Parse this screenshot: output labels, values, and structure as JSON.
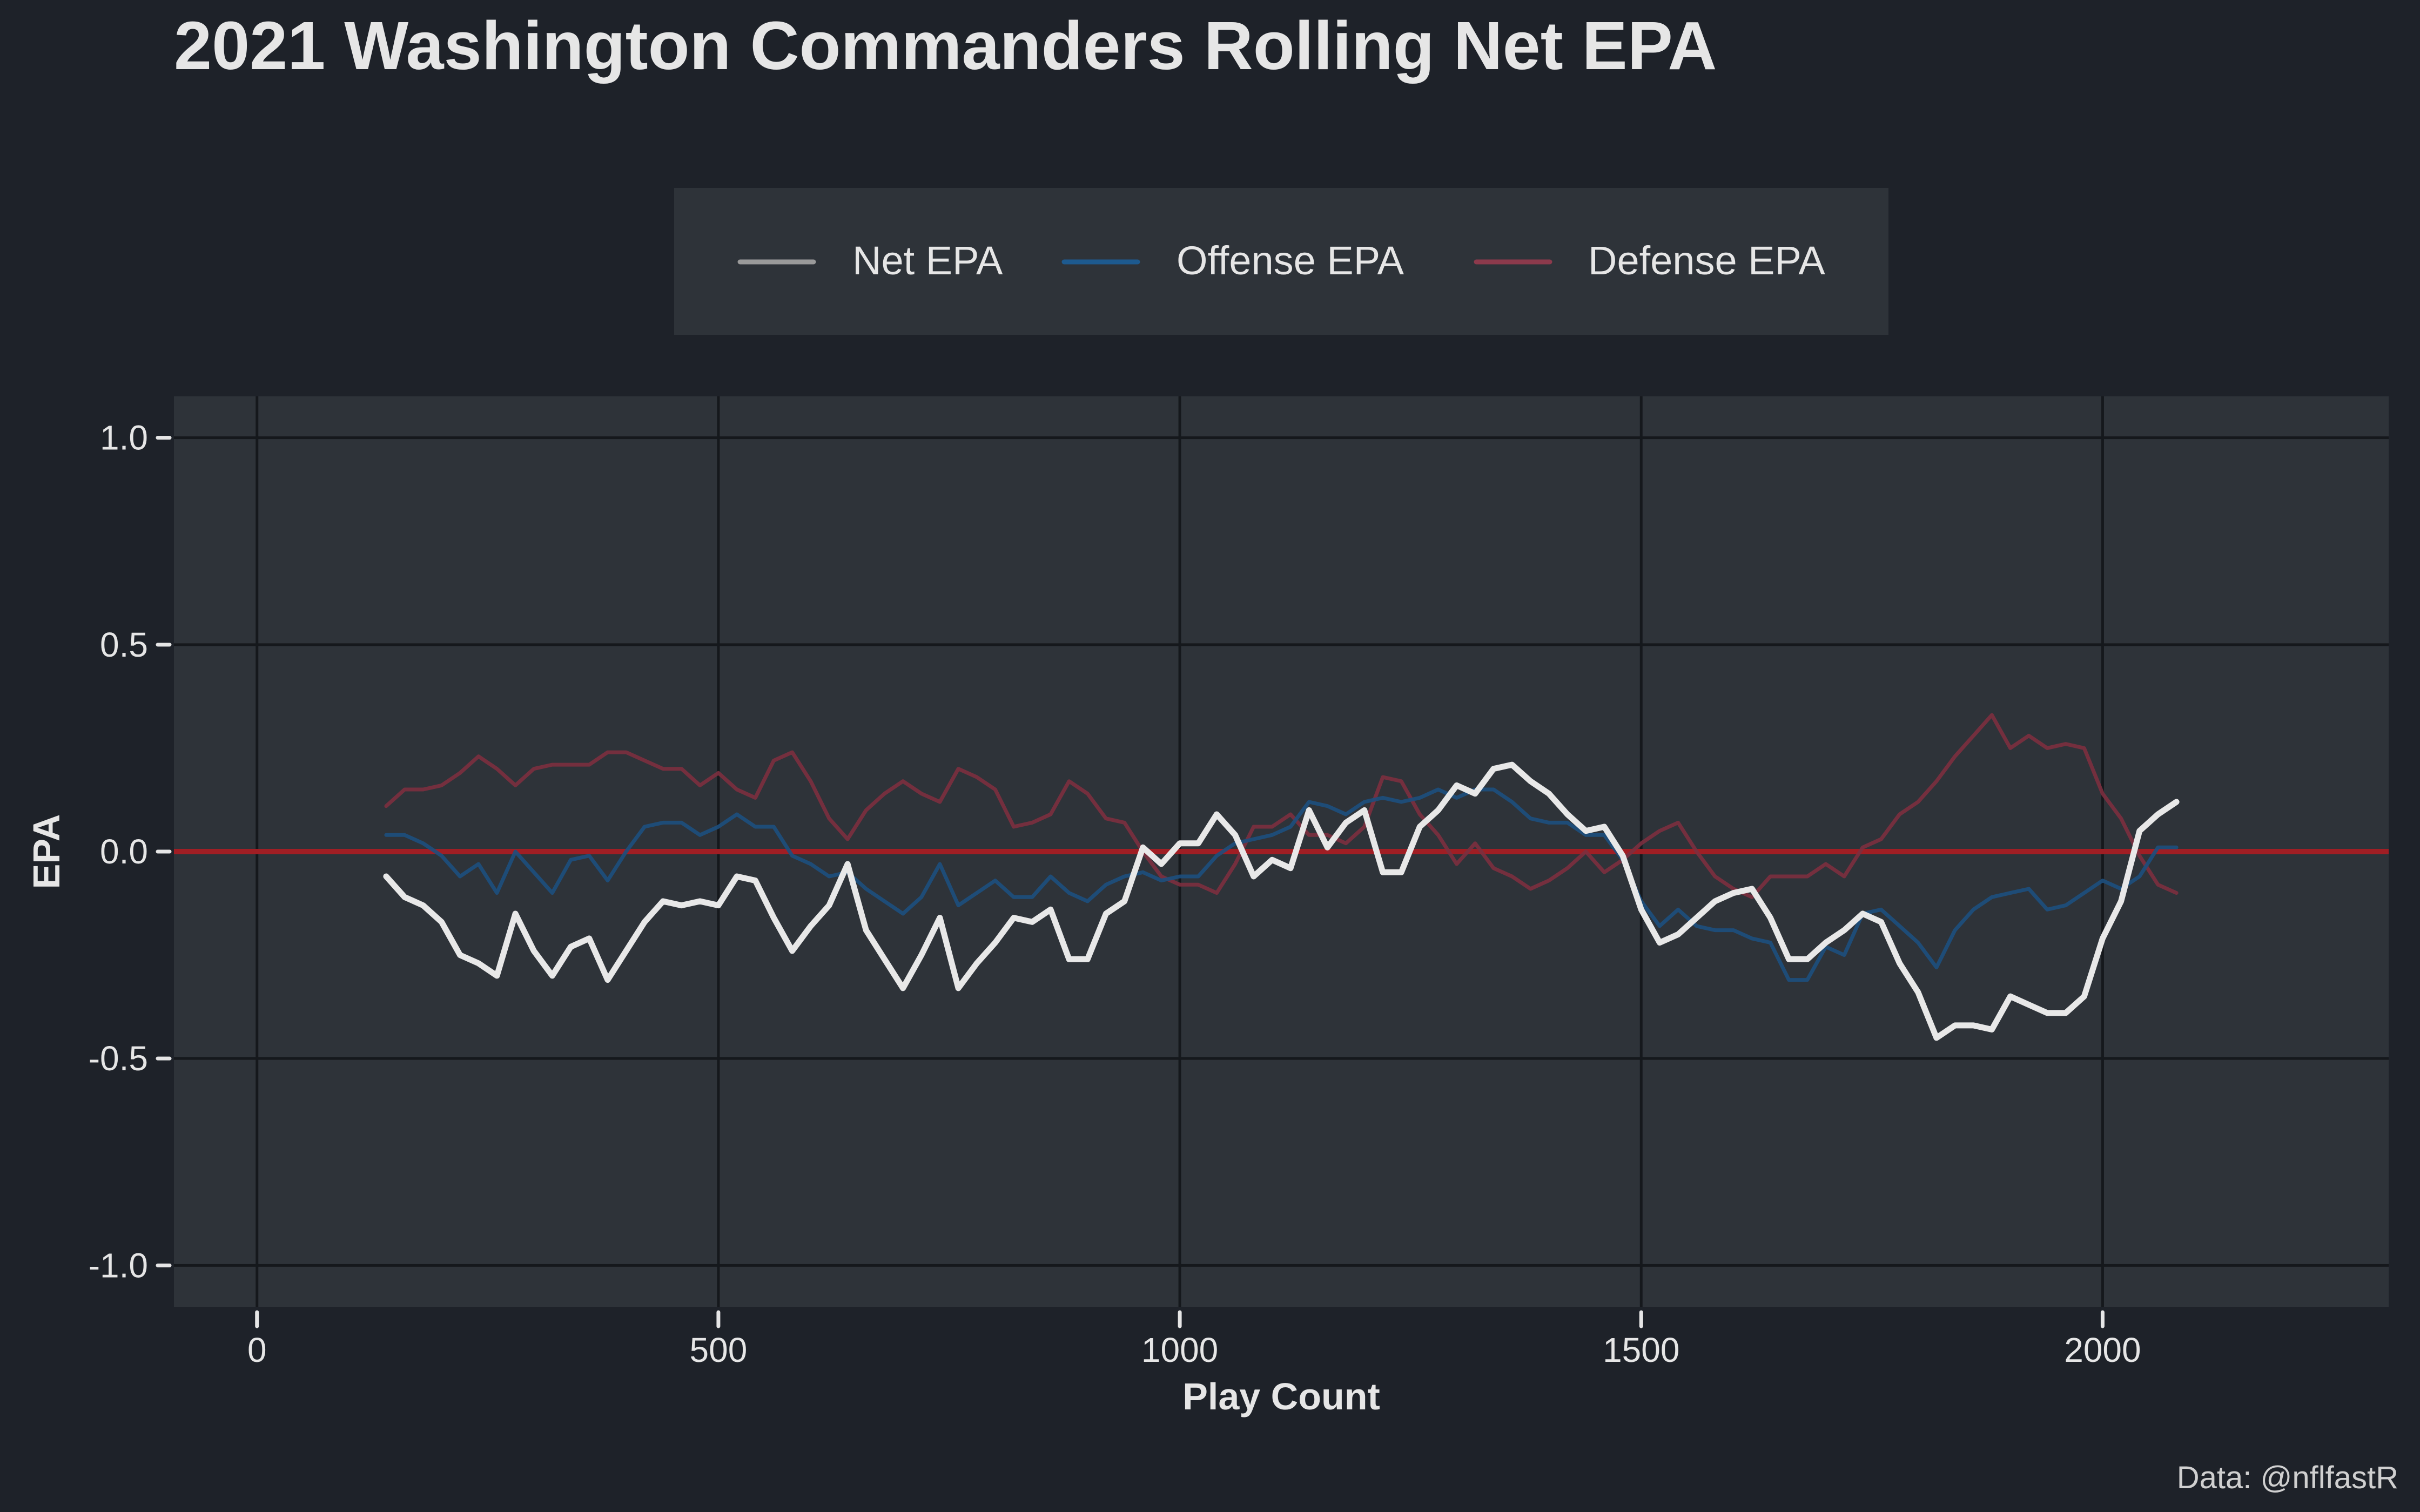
{
  "chart_data": {
    "type": "line",
    "title": "2021 Washington Commanders Rolling Net EPA",
    "xlabel": "Play Count",
    "ylabel": "EPA",
    "caption": "Data: @nflfastR",
    "xlim": [
      -90,
      2310
    ],
    "ylim": [
      -1.1,
      1.1
    ],
    "x_ticks": [
      0,
      500,
      1000,
      1500,
      2000
    ],
    "x_tick_labels": [
      "0",
      "500",
      "1000",
      "1500",
      "2000"
    ],
    "y_ticks": [
      1.0,
      0.5,
      0.0,
      -0.5,
      -1.0
    ],
    "y_tick_labels": [
      "1.0",
      "0.5",
      "0.0",
      "-0.5",
      "-1.0"
    ],
    "grid": true,
    "legend_position": "top",
    "reference_line": {
      "y": 0,
      "color": "#a01e24"
    },
    "colors": {
      "background": "#1e2229",
      "panel": "#2e3339",
      "grid": "#15181c",
      "text": "#e6e6e6"
    },
    "x": [
      140,
      160,
      180,
      200,
      220,
      240,
      260,
      280,
      300,
      320,
      340,
      360,
      380,
      400,
      420,
      440,
      460,
      480,
      500,
      520,
      540,
      560,
      580,
      600,
      620,
      640,
      660,
      680,
      700,
      720,
      740,
      760,
      780,
      800,
      820,
      840,
      860,
      880,
      900,
      920,
      940,
      960,
      980,
      1000,
      1020,
      1040,
      1060,
      1080,
      1100,
      1120,
      1140,
      1160,
      1180,
      1200,
      1220,
      1240,
      1260,
      1280,
      1300,
      1320,
      1340,
      1360,
      1380,
      1400,
      1420,
      1440,
      1460,
      1480,
      1500,
      1520,
      1540,
      1560,
      1580,
      1600,
      1620,
      1640,
      1660,
      1680,
      1700,
      1720,
      1740,
      1760,
      1780,
      1800,
      1820,
      1840,
      1860,
      1880,
      1900,
      1920,
      1940,
      1960,
      1980,
      2000,
      2020,
      2040,
      2060,
      2080
    ],
    "series": [
      {
        "name": "Net EPA",
        "color": "#e8e8e8",
        "legend_color": "#9a9a9a",
        "opacity": 1,
        "stroke_width": 11,
        "values": [
          -0.06,
          -0.11,
          -0.13,
          -0.17,
          -0.25,
          -0.27,
          -0.3,
          -0.15,
          -0.24,
          -0.3,
          -0.23,
          -0.21,
          -0.31,
          -0.24,
          -0.17,
          -0.12,
          -0.13,
          -0.12,
          -0.13,
          -0.06,
          -0.07,
          -0.16,
          -0.24,
          -0.18,
          -0.13,
          -0.03,
          -0.19,
          -0.26,
          -0.33,
          -0.25,
          -0.16,
          -0.33,
          -0.27,
          -0.22,
          -0.16,
          -0.17,
          -0.14,
          -0.26,
          -0.26,
          -0.15,
          -0.12,
          0.01,
          -0.03,
          0.02,
          0.02,
          0.09,
          0.04,
          -0.06,
          -0.02,
          -0.04,
          0.1,
          0.01,
          0.07,
          0.1,
          -0.05,
          -0.05,
          0.06,
          0.1,
          0.16,
          0.14,
          0.2,
          0.21,
          0.17,
          0.14,
          0.09,
          0.05,
          0.06,
          -0.01,
          -0.14,
          -0.22,
          -0.2,
          -0.16,
          -0.12,
          -0.1,
          -0.09,
          -0.16,
          -0.26,
          -0.26,
          -0.22,
          -0.19,
          -0.15,
          -0.17,
          -0.27,
          -0.34,
          -0.45,
          -0.42,
          -0.42,
          -0.43,
          -0.35,
          -0.37,
          -0.39,
          -0.39,
          -0.35,
          -0.21,
          -0.12,
          0.05,
          0.09,
          0.12
        ]
      },
      {
        "name": "Offense EPA",
        "color": "#1d4f7e",
        "legend_color": "#1d5a8f",
        "opacity": 0.9,
        "stroke_width": 7,
        "values": [
          0.04,
          0.04,
          0.02,
          -0.01,
          -0.06,
          -0.03,
          -0.1,
          0.0,
          -0.05,
          -0.1,
          -0.02,
          -0.01,
          -0.07,
          0.0,
          0.06,
          0.07,
          0.07,
          0.04,
          0.06,
          0.09,
          0.06,
          0.06,
          -0.01,
          -0.03,
          -0.06,
          -0.05,
          -0.09,
          -0.12,
          -0.15,
          -0.11,
          -0.03,
          -0.13,
          -0.1,
          -0.07,
          -0.11,
          -0.11,
          -0.06,
          -0.1,
          -0.12,
          -0.08,
          -0.06,
          -0.05,
          -0.07,
          -0.06,
          -0.06,
          -0.01,
          0.02,
          0.03,
          0.04,
          0.06,
          0.12,
          0.11,
          0.09,
          0.12,
          0.13,
          0.12,
          0.13,
          0.15,
          0.13,
          0.15,
          0.15,
          0.12,
          0.08,
          0.07,
          0.07,
          0.04,
          0.04,
          -0.02,
          -0.12,
          -0.18,
          -0.14,
          -0.18,
          -0.19,
          -0.19,
          -0.21,
          -0.22,
          -0.31,
          -0.31,
          -0.23,
          -0.25,
          -0.15,
          -0.14,
          -0.18,
          -0.22,
          -0.28,
          -0.19,
          -0.14,
          -0.11,
          -0.1,
          -0.09,
          -0.14,
          -0.13,
          -0.1,
          -0.07,
          -0.09,
          -0.06,
          0.01,
          0.01
        ]
      },
      {
        "name": "Defense EPA",
        "color": "#7c2f3f",
        "legend_color": "#8c3a4c",
        "opacity": 0.9,
        "stroke_width": 7,
        "values": [
          0.11,
          0.15,
          0.15,
          0.16,
          0.19,
          0.23,
          0.2,
          0.16,
          0.2,
          0.21,
          0.21,
          0.21,
          0.24,
          0.24,
          0.22,
          0.2,
          0.2,
          0.16,
          0.19,
          0.15,
          0.13,
          0.22,
          0.24,
          0.17,
          0.08,
          0.03,
          0.1,
          0.14,
          0.17,
          0.14,
          0.12,
          0.2,
          0.18,
          0.15,
          0.06,
          0.07,
          0.09,
          0.17,
          0.14,
          0.08,
          0.07,
          0.0,
          -0.06,
          -0.08,
          -0.08,
          -0.1,
          -0.03,
          0.06,
          0.06,
          0.09,
          0.04,
          0.04,
          0.02,
          0.06,
          0.18,
          0.17,
          0.09,
          0.04,
          -0.03,
          0.02,
          -0.04,
          -0.06,
          -0.09,
          -0.07,
          -0.04,
          0.0,
          -0.05,
          -0.02,
          0.02,
          0.05,
          0.07,
          0.0,
          -0.06,
          -0.09,
          -0.11,
          -0.06,
          -0.06,
          -0.06,
          -0.03,
          -0.06,
          0.01,
          0.03,
          0.09,
          0.12,
          0.17,
          0.23,
          0.28,
          0.33,
          0.25,
          0.28,
          0.25,
          0.26,
          0.25,
          0.14,
          0.08,
          -0.01,
          -0.08,
          -0.1
        ]
      }
    ]
  }
}
